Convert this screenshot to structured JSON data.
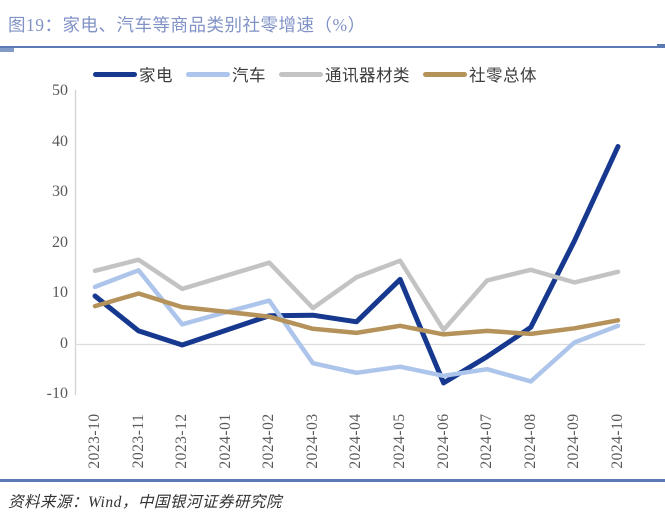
{
  "figure": {
    "title": "图19：家电、汽车等商品类别社零增速（%）",
    "source": "资料来源：Wind，中国银河证券研究院"
  },
  "colors": {
    "title_text": "#8092C6",
    "separator_blue": "#5B7AB4",
    "axis_text": "#595959",
    "axis_line": "#D3D3D3",
    "zero_gridline": "#DCDCDC",
    "legend_text": "#3C3C3C",
    "source_text": "#333333"
  },
  "chart_data": {
    "type": "line",
    "title": "家电、汽车等商品类别社零增速（%）",
    "categories": [
      "2023-10",
      "2023-11",
      "2023-12",
      "2024-01",
      "2024-02",
      "2024-03",
      "2024-04",
      "2024-05",
      "2024-06",
      "2024-07",
      "2024-08",
      "2024-09",
      "2024-10"
    ],
    "series": [
      {
        "name": "家电",
        "color": "#16398F",
        "stroke_width": 5,
        "values": [
          9.6,
          2.7,
          -0.1,
          2.8,
          5.7,
          5.8,
          4.5,
          12.9,
          -7.6,
          -2.4,
          3.4,
          20.5,
          39.2
        ]
      },
      {
        "name": "汽车",
        "color": "#ADC5EA",
        "stroke_width": 4.5,
        "values": [
          11.4,
          14.7,
          4.0,
          6.4,
          8.7,
          -3.7,
          -5.6,
          -4.4,
          -6.2,
          -4.9,
          -7.3,
          0.4,
          3.7
        ]
      },
      {
        "name": "通讯器材类",
        "color": "#C3C3C3",
        "stroke_width": 4.5,
        "values": [
          14.6,
          16.8,
          11.0,
          13.6,
          16.2,
          7.2,
          13.3,
          16.6,
          2.9,
          12.7,
          14.8,
          12.3,
          14.4
        ]
      },
      {
        "name": "社零总体",
        "color": "#B5925A",
        "stroke_width": 4.5,
        "values": [
          7.6,
          10.1,
          7.4,
          6.5,
          5.5,
          3.1,
          2.3,
          3.7,
          2.0,
          2.7,
          2.1,
          3.2,
          4.8
        ]
      }
    ],
    "ylabel": "",
    "xlabel": "",
    "ylim": [
      -10,
      50
    ],
    "yticks": [
      50,
      40,
      30,
      20,
      10,
      0,
      -10
    ],
    "legend_position": "top",
    "grid": "zero-line-only"
  }
}
